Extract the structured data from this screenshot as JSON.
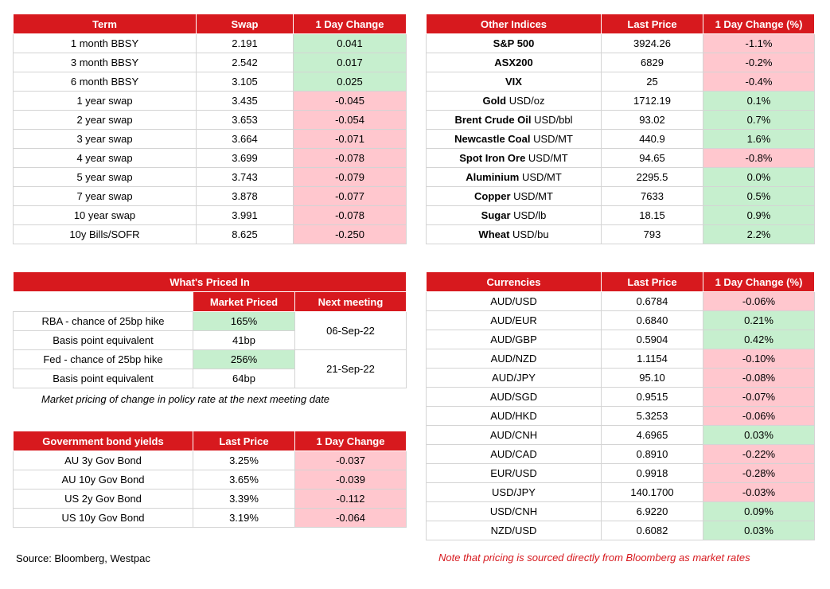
{
  "swap_table": {
    "headers": [
      "Term",
      "Swap",
      "1 Day Change"
    ],
    "rows": [
      {
        "term": "1 month BBSY",
        "value": "2.191",
        "change": "0.041",
        "dir": "pos"
      },
      {
        "term": "3 month BBSY",
        "value": "2.542",
        "change": "0.017",
        "dir": "pos"
      },
      {
        "term": "6 month BBSY",
        "value": "3.105",
        "change": "0.025",
        "dir": "pos"
      },
      {
        "term": "1 year swap",
        "value": "3.435",
        "change": "-0.045",
        "dir": "neg"
      },
      {
        "term": "2 year swap",
        "value": "3.653",
        "change": "-0.054",
        "dir": "neg"
      },
      {
        "term": "3 year swap",
        "value": "3.664",
        "change": "-0.071",
        "dir": "neg"
      },
      {
        "term": "4 year swap",
        "value": "3.699",
        "change": "-0.078",
        "dir": "neg"
      },
      {
        "term": "5 year swap",
        "value": "3.743",
        "change": "-0.079",
        "dir": "neg"
      },
      {
        "term": "7 year swap",
        "value": "3.878",
        "change": "-0.077",
        "dir": "neg"
      },
      {
        "term": "10 year swap",
        "value": "3.991",
        "change": "-0.078",
        "dir": "neg"
      },
      {
        "term": "10y Bills/SOFR",
        "value": "8.625",
        "change": "-0.250",
        "dir": "neg"
      }
    ]
  },
  "other_indices": {
    "headers": [
      "Other Indices",
      "Last Price",
      "1 Day Change (%)"
    ],
    "rows": [
      {
        "name": "S&P 500",
        "unit": "",
        "price": "3924.26",
        "change": "-1.1%",
        "dir": "neg"
      },
      {
        "name": "ASX200",
        "unit": "",
        "price": "6829",
        "change": "-0.2%",
        "dir": "neg"
      },
      {
        "name": "VIX",
        "unit": "",
        "price": "25",
        "change": "-0.4%",
        "dir": "neg"
      },
      {
        "name": "Gold",
        "unit": " USD/oz",
        "price": "1712.19",
        "change": "0.1%",
        "dir": "pos"
      },
      {
        "name": "Brent Crude Oil",
        "unit": " USD/bbl",
        "price": "93.02",
        "change": "0.7%",
        "dir": "pos"
      },
      {
        "name": "Newcastle Coal",
        "unit": " USD/MT",
        "price": "440.9",
        "change": "1.6%",
        "dir": "pos"
      },
      {
        "name": "Spot Iron Ore",
        "unit": " USD/MT",
        "price": "94.65",
        "change": "-0.8%",
        "dir": "neg"
      },
      {
        "name": "Aluminium",
        "unit": " USD/MT",
        "price": "2295.5",
        "change": "0.0%",
        "dir": "pos"
      },
      {
        "name": "Copper",
        "unit": " USD/MT",
        "price": "7633",
        "change": "0.5%",
        "dir": "pos"
      },
      {
        "name": "Sugar",
        "unit": " USD/lb",
        "price": "18.15",
        "change": "0.9%",
        "dir": "pos"
      },
      {
        "name": "Wheat",
        "unit": " USD/bu",
        "price": "793",
        "change": "2.2%",
        "dir": "pos"
      }
    ]
  },
  "whats_priced": {
    "title": "What's Priced In",
    "col1": "Market Priced",
    "col2": "Next meeting",
    "rows": [
      {
        "label": "RBA - chance of 25bp hike",
        "value": "165%",
        "highlight": true
      },
      {
        "label": "Basis point equivalent",
        "value": "41bp",
        "highlight": false
      },
      {
        "label": "Fed - chance of 25bp hike",
        "value": "256%",
        "highlight": true
      },
      {
        "label": "Basis point equivalent",
        "value": "64bp",
        "highlight": false
      }
    ],
    "meetings": [
      "06-Sep-22",
      "21-Sep-22"
    ],
    "note": "Market pricing of change in policy rate at the next meeting date"
  },
  "gov_bonds": {
    "headers": [
      "Government bond yields",
      "Last Price",
      "1 Day Change"
    ],
    "rows": [
      {
        "name": "AU 3y Gov Bond",
        "price": "3.25%",
        "change": "-0.037",
        "dir": "neg"
      },
      {
        "name": "AU 10y Gov Bond",
        "price": "3.65%",
        "change": "-0.039",
        "dir": "neg"
      },
      {
        "name": "US 2y Gov Bond",
        "price": "3.39%",
        "change": "-0.112",
        "dir": "neg"
      },
      {
        "name": "US 10y Gov Bond",
        "price": "3.19%",
        "change": "-0.064",
        "dir": "neg"
      }
    ]
  },
  "currencies": {
    "headers": [
      "Currencies",
      "Last Price",
      "1 Day Change (%)"
    ],
    "rows": [
      {
        "pair": "AUD/USD",
        "price": "0.6784",
        "change": "-0.06%",
        "dir": "neg"
      },
      {
        "pair": "AUD/EUR",
        "price": "0.6840",
        "change": "0.21%",
        "dir": "pos"
      },
      {
        "pair": "AUD/GBP",
        "price": "0.5904",
        "change": "0.42%",
        "dir": "pos"
      },
      {
        "pair": "AUD/NZD",
        "price": "1.1154",
        "change": "-0.10%",
        "dir": "neg"
      },
      {
        "pair": "AUD/JPY",
        "price": "95.10",
        "change": "-0.08%",
        "dir": "neg"
      },
      {
        "pair": "AUD/SGD",
        "price": "0.9515",
        "change": "-0.07%",
        "dir": "neg"
      },
      {
        "pair": "AUD/HKD",
        "price": "5.3253",
        "change": "-0.06%",
        "dir": "neg"
      },
      {
        "pair": "AUD/CNH",
        "price": "4.6965",
        "change": "0.03%",
        "dir": "pos"
      },
      {
        "pair": "AUD/CAD",
        "price": "0.8910",
        "change": "-0.22%",
        "dir": "neg"
      },
      {
        "pair": "EUR/USD",
        "price": "0.9918",
        "change": "-0.28%",
        "dir": "neg"
      },
      {
        "pair": "USD/JPY",
        "price": "140.1700",
        "change": "-0.03%",
        "dir": "neg"
      },
      {
        "pair": "USD/CNH",
        "price": "6.9220",
        "change": "0.09%",
        "dir": "pos"
      },
      {
        "pair": "NZD/USD",
        "price": "0.6082",
        "change": "0.03%",
        "dir": "pos"
      }
    ]
  },
  "source": "Source: Bloomberg, Westpac",
  "footer_note": "Note that pricing is sourced directly from Bloomberg as market rates",
  "colors": {
    "header_red": "#d7191e",
    "positive_green": "#c6efce",
    "negative_pink": "#ffc7ce"
  }
}
